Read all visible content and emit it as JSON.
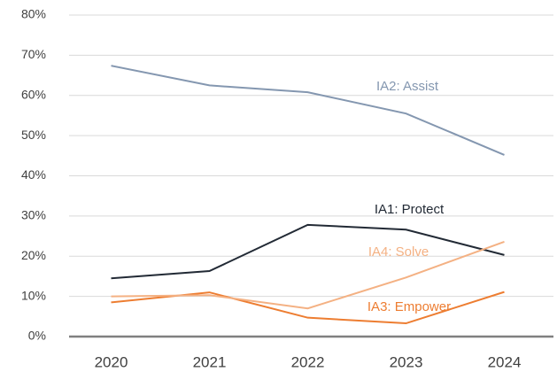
{
  "chart_data": {
    "type": "line",
    "categories": [
      "2020",
      "2021",
      "2022",
      "2023",
      "2024"
    ],
    "series": [
      {
        "name": "IA1: Protect",
        "color": "#222a35",
        "values": [
          14.5,
          16.3,
          27.8,
          26.6,
          20.3
        ]
      },
      {
        "name": "IA2: Assist",
        "color": "#8497b0",
        "values": [
          67.4,
          62.5,
          60.8,
          55.5,
          45.2
        ]
      },
      {
        "name": "IA3: Empower",
        "color": "#ed7d31",
        "values": [
          8.5,
          11.0,
          4.7,
          3.3,
          11.1
        ]
      },
      {
        "name": "IA4: Solve",
        "color": "#f4b183",
        "values": [
          10.0,
          10.3,
          7.0,
          14.7,
          23.6
        ]
      }
    ],
    "ylim": [
      0,
      80
    ],
    "yticks": [
      {
        "value": 0,
        "label": "0%"
      },
      {
        "value": 10,
        "label": "10%"
      },
      {
        "value": 20,
        "label": "20%"
      },
      {
        "value": 30,
        "label": "30%"
      },
      {
        "value": 40,
        "label": "40%"
      },
      {
        "value": 50,
        "label": "50%"
      },
      {
        "value": 60,
        "label": "60%"
      },
      {
        "value": 70,
        "label": "70%"
      },
      {
        "value": 80,
        "label": "80%"
      }
    ],
    "grid": true
  }
}
